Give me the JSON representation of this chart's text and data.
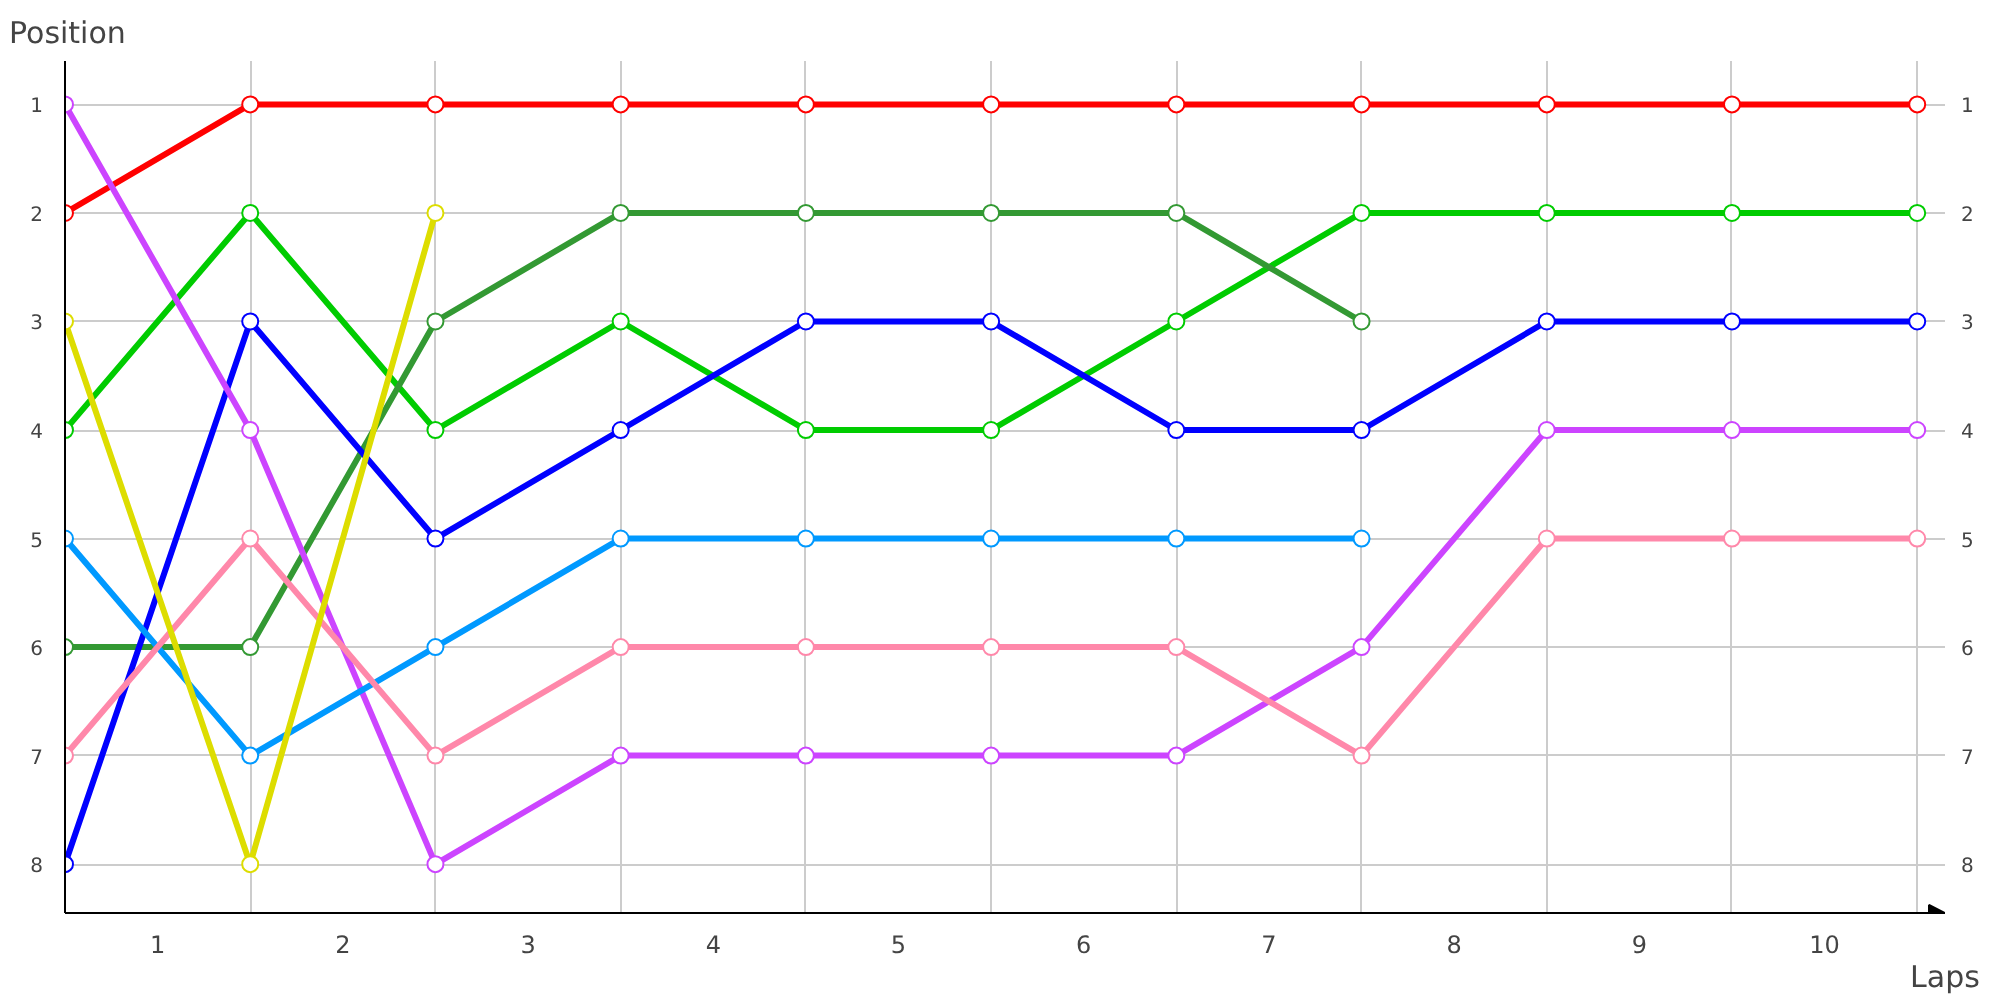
{
  "chart_data": {
    "type": "line",
    "xlabel": "Laps",
    "ylabel": "Position",
    "x": [
      0,
      1,
      2,
      3,
      4,
      5,
      6,
      7,
      8,
      9,
      10
    ],
    "xlim": [
      0,
      10.15
    ],
    "ylim": [
      8.45,
      0.6
    ],
    "y2lim": [
      8.45,
      0.6
    ],
    "xticks": [
      {
        "value": 0,
        "label": null
      },
      {
        "value": 0.5,
        "label": "1"
      },
      {
        "value": 1,
        "label": null
      },
      {
        "value": 1.5,
        "label": "2"
      },
      {
        "value": 2,
        "label": null
      },
      {
        "value": 2.5,
        "label": "3"
      },
      {
        "value": 3,
        "label": null
      },
      {
        "value": 3.5,
        "label": "4"
      },
      {
        "value": 4,
        "label": null
      },
      {
        "value": 4.5,
        "label": "5"
      },
      {
        "value": 5,
        "label": null
      },
      {
        "value": 5.5,
        "label": "6"
      },
      {
        "value": 6,
        "label": null
      },
      {
        "value": 6.5,
        "label": "7"
      },
      {
        "value": 7,
        "label": null
      },
      {
        "value": 7.5,
        "label": "8"
      },
      {
        "value": 8,
        "label": null
      },
      {
        "value": 8.5,
        "label": "9"
      },
      {
        "value": 9,
        "label": null
      },
      {
        "value": 9.5,
        "label": "10"
      },
      {
        "value": 10,
        "label": null
      }
    ],
    "yticks": [
      1,
      2,
      3,
      4,
      5,
      6,
      7,
      8
    ],
    "y2ticks": [
      1,
      2,
      3,
      4,
      5,
      6,
      7,
      8
    ],
    "grid": true,
    "marker": "circle",
    "line_style": "solid",
    "series": [
      {
        "color": "#ff0000",
        "values": [
          2,
          1,
          1,
          1,
          1,
          1,
          1,
          1,
          1,
          1,
          1
        ]
      },
      {
        "color": "#00cc00",
        "values": [
          4,
          2,
          4,
          3,
          4,
          4,
          3,
          2,
          2,
          2,
          2
        ]
      },
      {
        "color": "#339933",
        "values": [
          6,
          6,
          3,
          2,
          2,
          2,
          2,
          3,
          null,
          null,
          null
        ]
      },
      {
        "color": "#0000ff",
        "values": [
          8,
          3,
          5,
          4,
          3,
          3,
          4,
          4,
          3,
          3,
          3
        ]
      },
      {
        "color": "#cc44ff",
        "values": [
          1,
          4,
          8,
          7,
          7,
          7,
          7,
          6,
          4,
          4,
          4
        ]
      },
      {
        "color": "#0099ff",
        "values": [
          5,
          7,
          6,
          5,
          5,
          5,
          5,
          5,
          null,
          null,
          null
        ]
      },
      {
        "color": "#ff88aa",
        "values": [
          7,
          5,
          7,
          6,
          6,
          6,
          6,
          7,
          5,
          5,
          5
        ]
      },
      {
        "color": "#dddd00",
        "values": [
          3,
          8,
          2,
          null,
          null,
          null,
          null,
          null,
          null,
          null,
          null
        ]
      }
    ]
  }
}
